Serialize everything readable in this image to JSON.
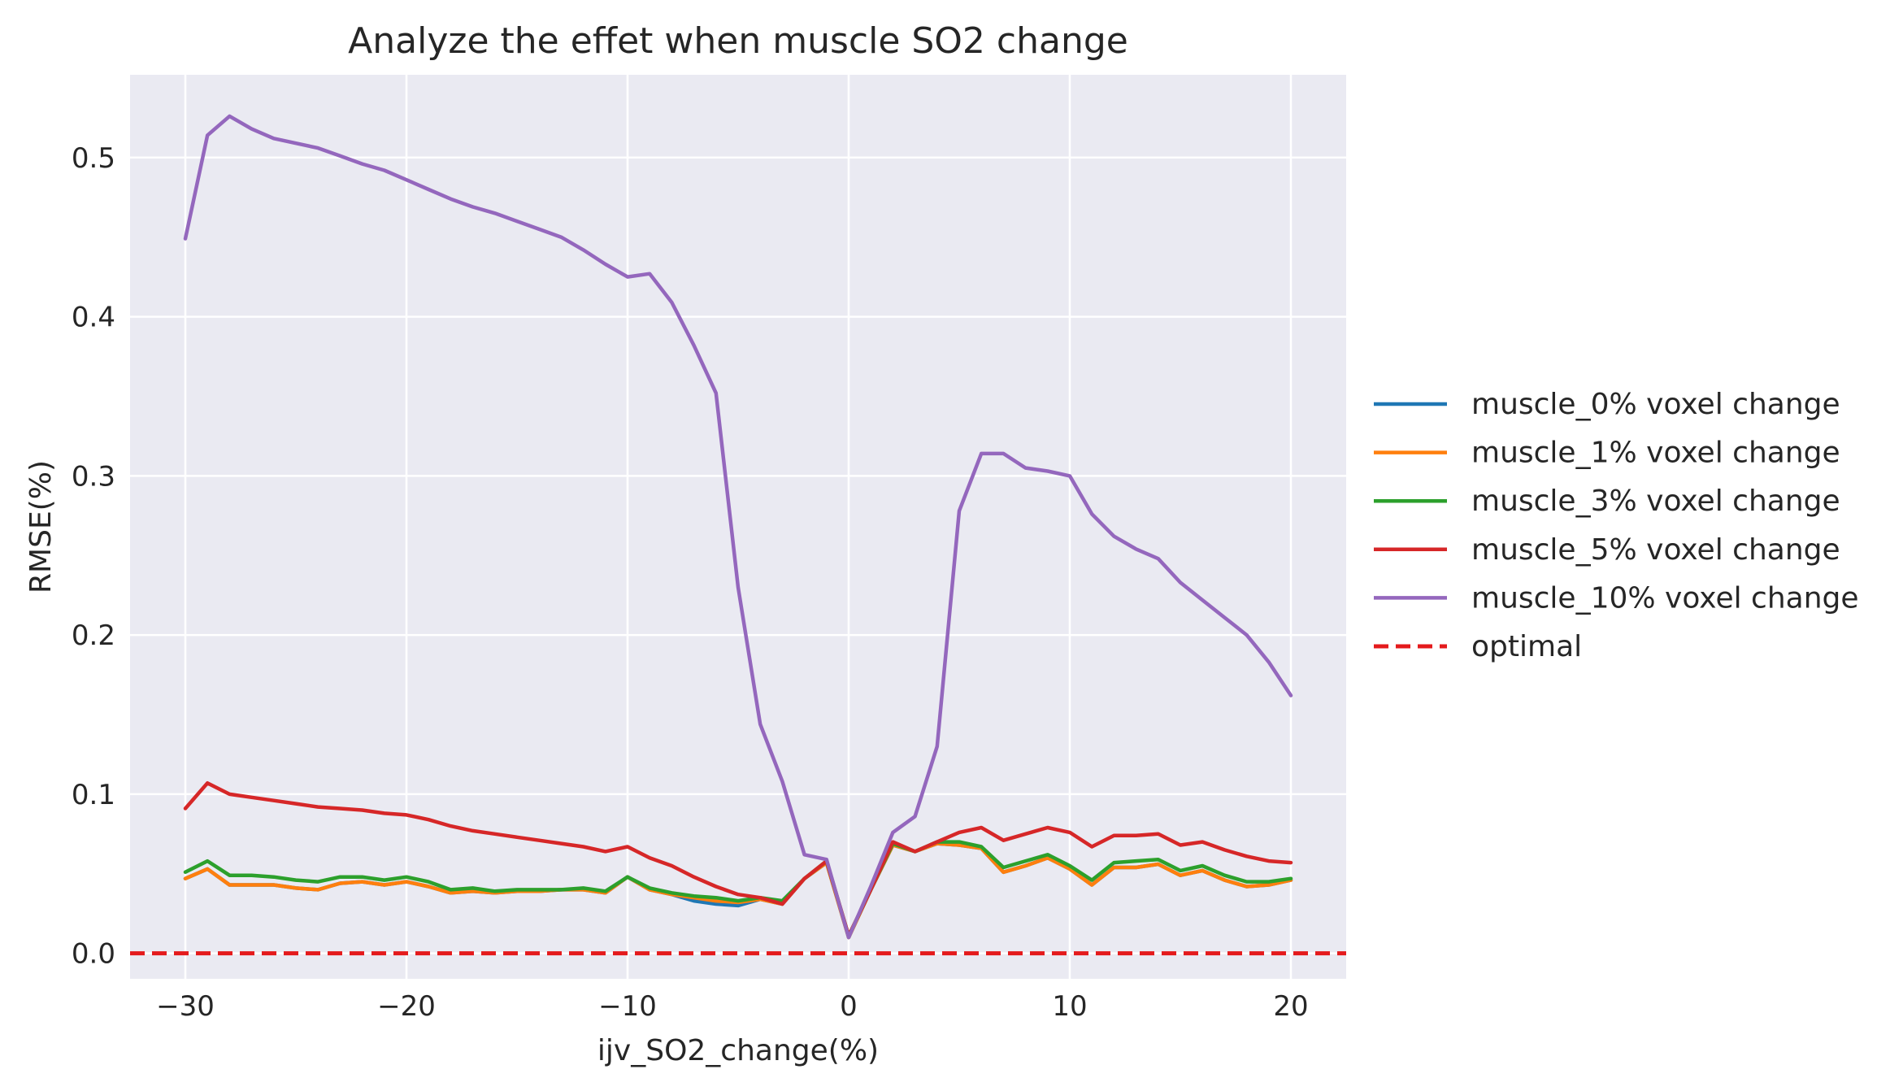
{
  "chart_data": {
    "type": "line",
    "title": "Analyze the effet when muscle SO2 change",
    "xlabel": "ijv_SO2_change(%)",
    "ylabel": "RMSE(%)",
    "xlim": [
      -32.5,
      22.5
    ],
    "ylim": [
      -0.016,
      0.552
    ],
    "xticks": [
      -30,
      -20,
      -10,
      0,
      10,
      20
    ],
    "xtick_labels": [
      "−30",
      "−20",
      "−10",
      "0",
      "10",
      "20"
    ],
    "yticks": [
      0.0,
      0.1,
      0.2,
      0.3,
      0.4,
      0.5
    ],
    "ytick_labels": [
      "0.0",
      "0.1",
      "0.2",
      "0.3",
      "0.4",
      "0.5"
    ],
    "grid": true,
    "legend_position": "outside-right",
    "x": [
      -30,
      -29,
      -28,
      -27,
      -26,
      -25,
      -24,
      -23,
      -22,
      -21,
      -20,
      -19,
      -18,
      -17,
      -16,
      -15,
      -14,
      -13,
      -12,
      -11,
      -10,
      -9,
      -8,
      -7,
      -6,
      -5,
      -4,
      -3,
      -2,
      -1,
      0,
      1,
      2,
      3,
      4,
      5,
      6,
      7,
      8,
      9,
      10,
      11,
      12,
      13,
      14,
      15,
      16,
      17,
      18,
      19,
      20
    ],
    "series": [
      {
        "name": "muscle_0% voxel change",
        "color": "#1f77b4",
        "style": "solid",
        "values": [
          0.047,
          0.053,
          0.043,
          0.043,
          0.043,
          0.041,
          0.04,
          0.044,
          0.045,
          0.043,
          0.045,
          0.042,
          0.038,
          0.039,
          0.038,
          0.039,
          0.039,
          0.04,
          0.04,
          0.038,
          0.048,
          0.04,
          0.037,
          0.033,
          0.031,
          0.03,
          0.034,
          0.031,
          0.047,
          0.057,
          0.01,
          0.04,
          0.068,
          0.064,
          0.069,
          0.068,
          0.066,
          0.051,
          0.055,
          0.06,
          0.053,
          0.043,
          0.054,
          0.054,
          0.056,
          0.049,
          0.052,
          0.046,
          0.042,
          0.043,
          0.046
        ]
      },
      {
        "name": "muscle_1% voxel change",
        "color": "#ff7f0e",
        "style": "solid",
        "values": [
          0.047,
          0.053,
          0.043,
          0.043,
          0.043,
          0.041,
          0.04,
          0.044,
          0.045,
          0.043,
          0.045,
          0.042,
          0.038,
          0.039,
          0.038,
          0.039,
          0.039,
          0.04,
          0.04,
          0.038,
          0.048,
          0.04,
          0.037,
          0.035,
          0.033,
          0.032,
          0.034,
          0.031,
          0.047,
          0.057,
          0.01,
          0.04,
          0.068,
          0.064,
          0.069,
          0.068,
          0.066,
          0.051,
          0.055,
          0.06,
          0.053,
          0.043,
          0.054,
          0.054,
          0.056,
          0.049,
          0.052,
          0.046,
          0.042,
          0.043,
          0.046
        ]
      },
      {
        "name": "muscle_3% voxel change",
        "color": "#2ca02c",
        "style": "solid",
        "values": [
          0.051,
          0.058,
          0.049,
          0.049,
          0.048,
          0.046,
          0.045,
          0.048,
          0.048,
          0.046,
          0.048,
          0.045,
          0.04,
          0.041,
          0.039,
          0.04,
          0.04,
          0.04,
          0.041,
          0.039,
          0.048,
          0.041,
          0.038,
          0.036,
          0.035,
          0.033,
          0.035,
          0.033,
          0.047,
          0.058,
          0.011,
          0.04,
          0.069,
          0.064,
          0.07,
          0.07,
          0.067,
          0.054,
          0.058,
          0.062,
          0.055,
          0.046,
          0.057,
          0.058,
          0.059,
          0.052,
          0.055,
          0.049,
          0.045,
          0.045,
          0.047
        ]
      },
      {
        "name": "muscle_5% voxel change",
        "color": "#d62728",
        "style": "solid",
        "values": [
          0.091,
          0.107,
          0.1,
          0.098,
          0.096,
          0.094,
          0.092,
          0.091,
          0.09,
          0.088,
          0.087,
          0.084,
          0.08,
          0.077,
          0.075,
          0.073,
          0.071,
          0.069,
          0.067,
          0.064,
          0.067,
          0.06,
          0.055,
          0.048,
          0.042,
          0.037,
          0.035,
          0.031,
          0.047,
          0.058,
          0.011,
          0.04,
          0.07,
          0.064,
          0.07,
          0.076,
          0.079,
          0.071,
          0.075,
          0.079,
          0.076,
          0.067,
          0.074,
          0.074,
          0.075,
          0.068,
          0.07,
          0.065,
          0.061,
          0.058,
          0.057
        ]
      },
      {
        "name": "muscle_10% voxel change",
        "color": "#9467bd",
        "style": "solid",
        "values": [
          0.449,
          0.514,
          0.526,
          0.518,
          0.512,
          0.509,
          0.506,
          0.501,
          0.496,
          0.492,
          0.486,
          0.48,
          0.474,
          0.469,
          0.465,
          0.46,
          0.455,
          0.45,
          0.442,
          0.433,
          0.425,
          0.427,
          0.409,
          0.382,
          0.352,
          0.23,
          0.144,
          0.108,
          0.062,
          0.059,
          0.01,
          0.042,
          0.076,
          0.086,
          0.13,
          0.278,
          0.314,
          0.314,
          0.305,
          0.303,
          0.3,
          0.276,
          0.262,
          0.254,
          0.248,
          0.233,
          0.222,
          0.211,
          0.2,
          0.183,
          0.162
        ]
      },
      {
        "name": "optimal",
        "color": "#e41a1c",
        "style": "dashed",
        "values": [
          0,
          0,
          0,
          0,
          0,
          0,
          0,
          0,
          0,
          0,
          0,
          0,
          0,
          0,
          0,
          0,
          0,
          0,
          0,
          0,
          0,
          0,
          0,
          0,
          0,
          0,
          0,
          0,
          0,
          0,
          0,
          0,
          0,
          0,
          0,
          0,
          0,
          0,
          0,
          0,
          0,
          0,
          0,
          0,
          0,
          0,
          0,
          0,
          0,
          0,
          0
        ]
      }
    ]
  }
}
